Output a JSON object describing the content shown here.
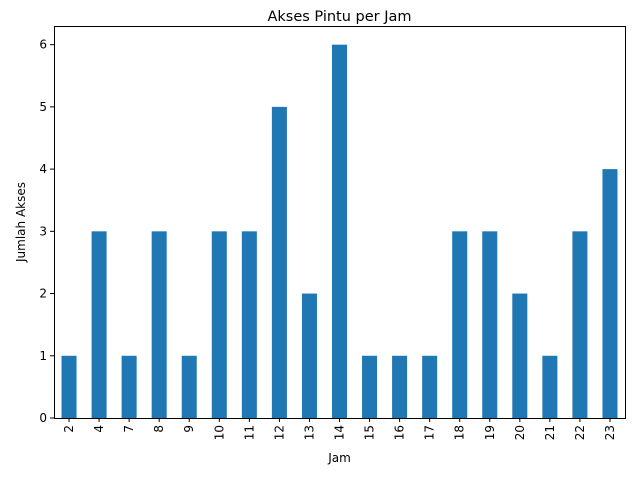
{
  "chart_data": {
    "type": "bar",
    "title": "Akses Pintu per Jam",
    "xlabel": "Jam",
    "ylabel": "Jumlah Akses",
    "categories": [
      "2",
      "4",
      "7",
      "8",
      "9",
      "10",
      "11",
      "12",
      "13",
      "14",
      "15",
      "16",
      "17",
      "18",
      "19",
      "20",
      "21",
      "22",
      "23"
    ],
    "values": [
      1,
      3,
      1,
      3,
      1,
      3,
      3,
      5,
      2,
      6,
      1,
      1,
      1,
      3,
      3,
      2,
      1,
      3,
      4
    ],
    "ylim": [
      0,
      6.3
    ],
    "yticks": [
      0,
      1,
      2,
      3,
      4,
      5,
      6
    ],
    "bar_color": "#1f77b4",
    "x_tick_rotation": "vertical",
    "grid": false,
    "legend": "none"
  }
}
